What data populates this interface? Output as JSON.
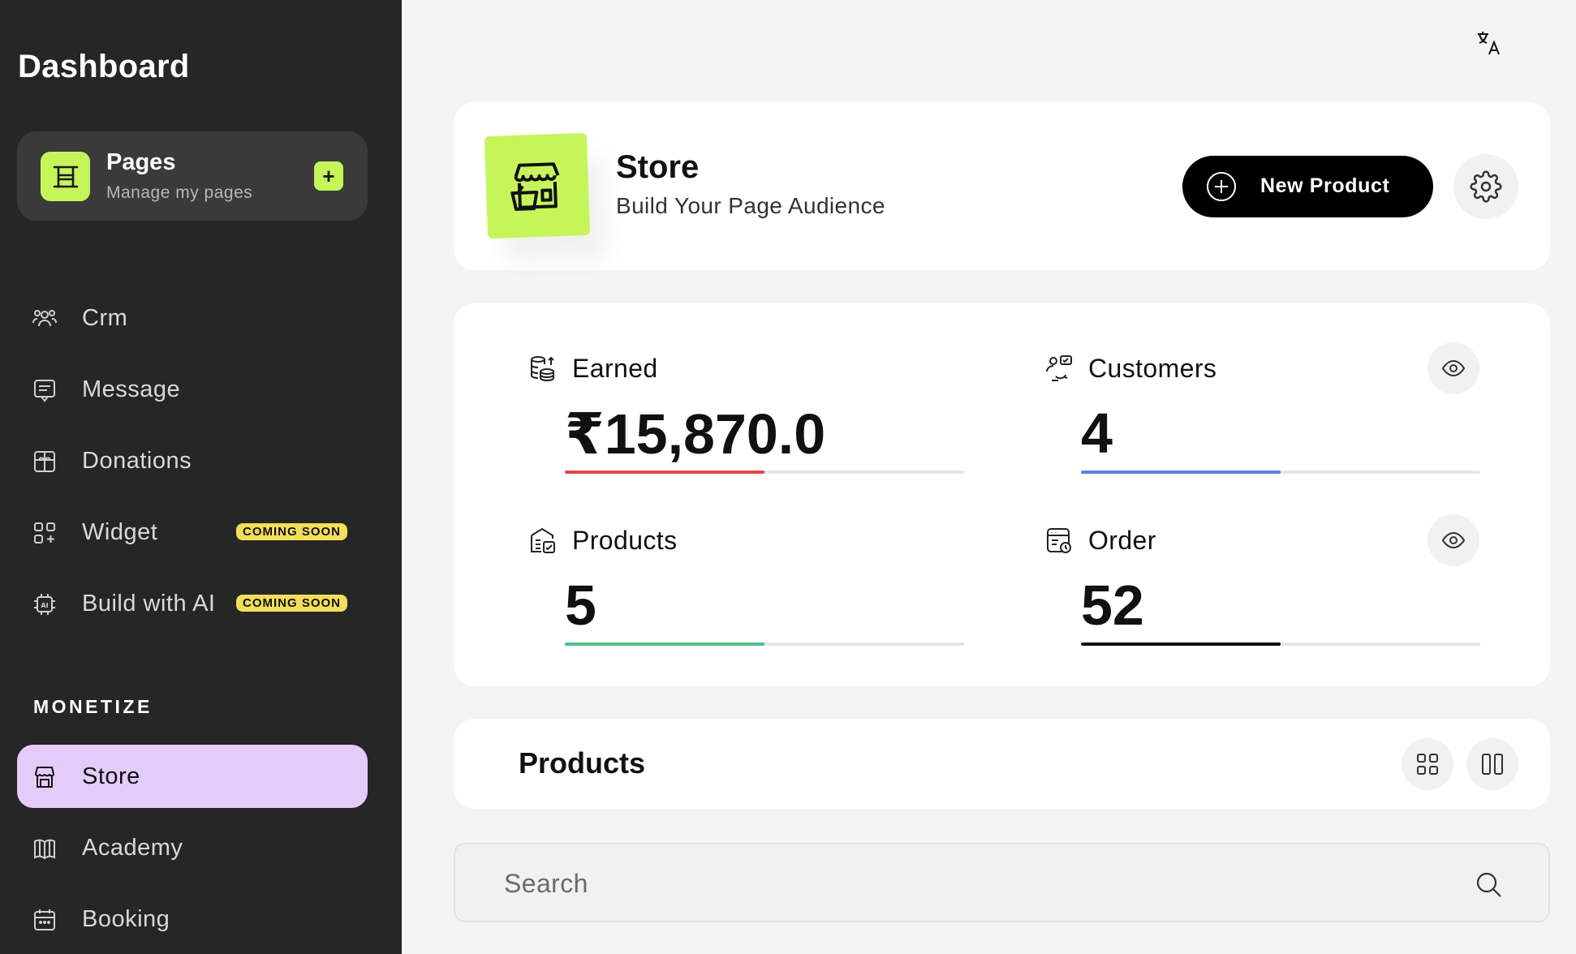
{
  "sidebar": {
    "title": "Dashboard",
    "pages_card": {
      "title": "Pages",
      "subtitle": "Manage my pages",
      "add_icon": "plus-icon"
    },
    "items": [
      {
        "label": "Crm",
        "icon": "users-icon"
      },
      {
        "label": "Message",
        "icon": "message-icon"
      },
      {
        "label": "Donations",
        "icon": "gift-icon"
      },
      {
        "label": "Widget",
        "icon": "widget-icon",
        "badge": "COMING SOON"
      },
      {
        "label": "Build with AI",
        "icon": "ai-chip-icon",
        "badge": "COMING SOON"
      }
    ],
    "section_label": "MONETIZE",
    "monetize_items": [
      {
        "label": "Store",
        "icon": "store-icon",
        "active": true
      },
      {
        "label": "Academy",
        "icon": "book-icon"
      },
      {
        "label": "Booking",
        "icon": "calendar-icon"
      }
    ]
  },
  "header": {
    "translate_icon": "translate-icon"
  },
  "store": {
    "title": "Store",
    "subtitle": "Build Your Page Audience",
    "new_product_label": "New Product",
    "settings_icon": "gear-icon"
  },
  "stats": [
    {
      "label": "Earned",
      "value": "₹15,870.0",
      "progress": 0.5,
      "color": "#e04848",
      "icon": "coins-icon"
    },
    {
      "label": "Customers",
      "value": "4",
      "progress": 0.5,
      "color": "#5a7fe0",
      "icon": "customers-icon",
      "has_eye": true
    },
    {
      "label": "Products",
      "value": "5",
      "progress": 0.5,
      "color": "#4cc08a",
      "icon": "products-icon"
    },
    {
      "label": "Order",
      "value": "52",
      "progress": 0.5,
      "color": "#111111",
      "icon": "order-icon",
      "has_eye": true
    }
  ],
  "products": {
    "title": "Products",
    "grid_icon": "grid-view-icon",
    "columns_icon": "column-view-icon"
  },
  "search": {
    "placeholder": "Search",
    "value": ""
  }
}
